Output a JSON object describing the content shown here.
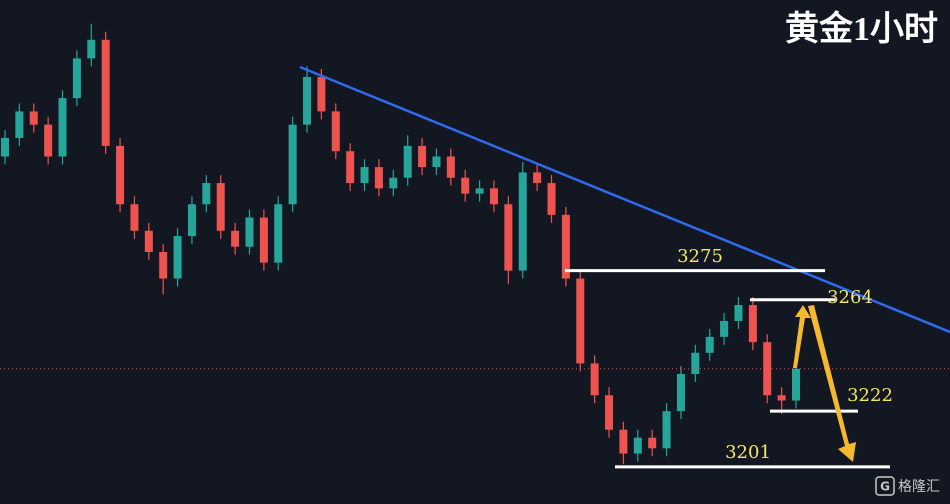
{
  "chart_data": {
    "type": "candlestick",
    "title": "黄金1小时",
    "ylim": [
      3187,
      3377
    ],
    "up_color": "#26a69a",
    "down_color": "#ef5350",
    "open": [
      3318,
      3325,
      3335,
      3330,
      3318,
      3340,
      3355,
      3362,
      3322,
      3300,
      3290,
      3282,
      3272,
      3288,
      3300,
      3308,
      3290,
      3284,
      3295,
      3278,
      3300,
      3330,
      3348,
      3335,
      3320,
      3308,
      3314,
      3306,
      3310,
      3322,
      3314,
      3318,
      3310,
      3304,
      3306,
      3300,
      3275,
      3312,
      3308,
      3296,
      3272,
      3240,
      3228,
      3215,
      3206,
      3212,
      3208,
      3222,
      3236,
      3244,
      3250,
      3256,
      3262,
      3248,
      3228,
      3226
    ],
    "high": [
      3328,
      3338,
      3338,
      3333,
      3343,
      3358,
      3368,
      3365,
      3325,
      3303,
      3293,
      3285,
      3291,
      3303,
      3311,
      3311,
      3293,
      3298,
      3298,
      3303,
      3333,
      3352,
      3351,
      3338,
      3323,
      3317,
      3317,
      3313,
      3326,
      3325,
      3321,
      3321,
      3313,
      3309,
      3309,
      3303,
      3316,
      3315,
      3311,
      3299,
      3275,
      3243,
      3231,
      3218,
      3215,
      3215,
      3225,
      3239,
      3247,
      3253,
      3259,
      3265,
      3265,
      3251,
      3231,
      3241
    ],
    "low": [
      3315,
      3322,
      3327,
      3315,
      3315,
      3337,
      3352,
      3319,
      3297,
      3287,
      3279,
      3266,
      3269,
      3285,
      3297,
      3287,
      3281,
      3281,
      3275,
      3275,
      3297,
      3327,
      3332,
      3317,
      3305,
      3305,
      3303,
      3303,
      3307,
      3311,
      3311,
      3307,
      3301,
      3301,
      3297,
      3270,
      3272,
      3305,
      3293,
      3269,
      3237,
      3225,
      3212,
      3202,
      3203,
      3205,
      3205,
      3219,
      3233,
      3241,
      3247,
      3253,
      3245,
      3225,
      3221,
      3223
    ],
    "close": [
      3325,
      3335,
      3330,
      3318,
      3340,
      3355,
      3362,
      3322,
      3300,
      3290,
      3282,
      3272,
      3288,
      3300,
      3308,
      3290,
      3284,
      3295,
      3278,
      3300,
      3330,
      3348,
      3335,
      3320,
      3308,
      3314,
      3306,
      3310,
      3322,
      3314,
      3318,
      3310,
      3304,
      3306,
      3300,
      3275,
      3312,
      3308,
      3296,
      3272,
      3240,
      3228,
      3215,
      3206,
      3212,
      3208,
      3222,
      3236,
      3244,
      3250,
      3256,
      3262,
      3248,
      3228,
      3226,
      3238
    ],
    "levels": [
      3275,
      3264,
      3222,
      3201
    ],
    "watermark": "格隆汇"
  }
}
